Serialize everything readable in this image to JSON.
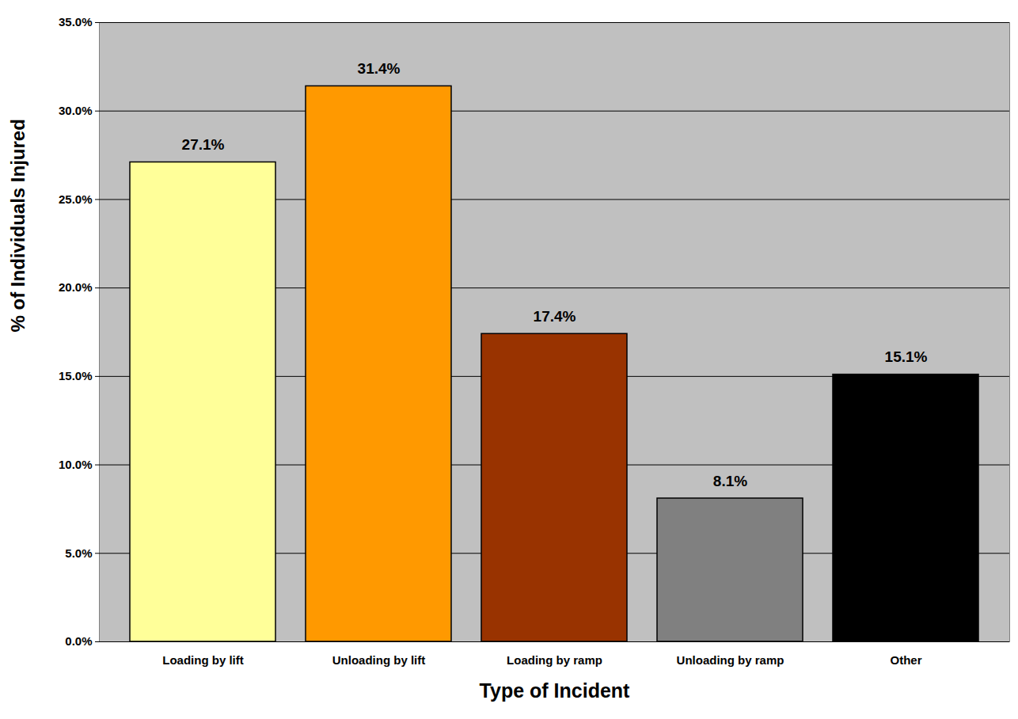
{
  "chart_data": {
    "type": "bar",
    "x_label": "Type of Incident",
    "y_label": "% of Individuals Injured",
    "categories": [
      "Loading by lift",
      "Unloading by lift",
      "Loading by ramp",
      "Unloading by ramp",
      "Other"
    ],
    "values": [
      27.1,
      31.4,
      17.4,
      8.1,
      15.1
    ],
    "value_labels": [
      "27.1%",
      "31.4%",
      "17.4%",
      "8.1%",
      "15.1%"
    ],
    "colors": [
      "#ffff99",
      "#ff9900",
      "#993300",
      "#808080",
      "#000000"
    ],
    "ylim": [
      0,
      35
    ],
    "yticks": [
      {
        "value": 0,
        "label": "0.0%"
      },
      {
        "value": 5,
        "label": "5.0%"
      },
      {
        "value": 10,
        "label": "10.0%"
      },
      {
        "value": 15,
        "label": "15.0%"
      },
      {
        "value": 20,
        "label": "20.0%"
      },
      {
        "value": 25,
        "label": "25.0%"
      },
      {
        "value": 30,
        "label": "30.0%"
      },
      {
        "value": 35,
        "label": "35.0%"
      }
    ],
    "grid": true,
    "data_labels": true
  }
}
